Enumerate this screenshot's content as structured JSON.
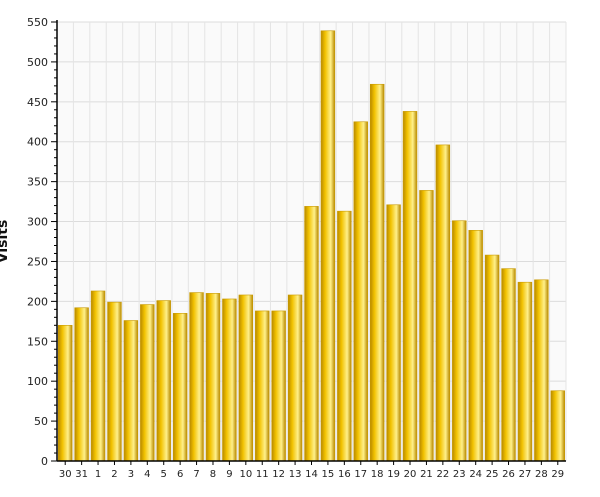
{
  "chart_data": {
    "type": "bar",
    "ylabel": "Visits",
    "ylim": [
      0,
      550
    ],
    "yticks": [
      0,
      50,
      100,
      150,
      200,
      250,
      300,
      350,
      400,
      450,
      500,
      550
    ],
    "grid": true,
    "categories": [
      "30",
      "31",
      "1",
      "2",
      "3",
      "4",
      "5",
      "6",
      "7",
      "8",
      "9",
      "10",
      "11",
      "12",
      "13",
      "14",
      "15",
      "16",
      "17",
      "18",
      "19",
      "20",
      "21",
      "22",
      "23",
      "24",
      "25",
      "26",
      "27",
      "28",
      "29"
    ],
    "values": [
      170,
      192,
      213,
      199,
      176,
      196,
      201,
      185,
      211,
      210,
      203,
      208,
      188,
      188,
      208,
      319,
      539,
      313,
      425,
      472,
      321,
      438,
      339,
      396,
      301,
      289,
      258,
      241,
      224,
      227,
      88
    ],
    "bar_color": "#F2C200",
    "bar_highlight": "#FFF08A",
    "bar_shadow": "#B88A00"
  }
}
